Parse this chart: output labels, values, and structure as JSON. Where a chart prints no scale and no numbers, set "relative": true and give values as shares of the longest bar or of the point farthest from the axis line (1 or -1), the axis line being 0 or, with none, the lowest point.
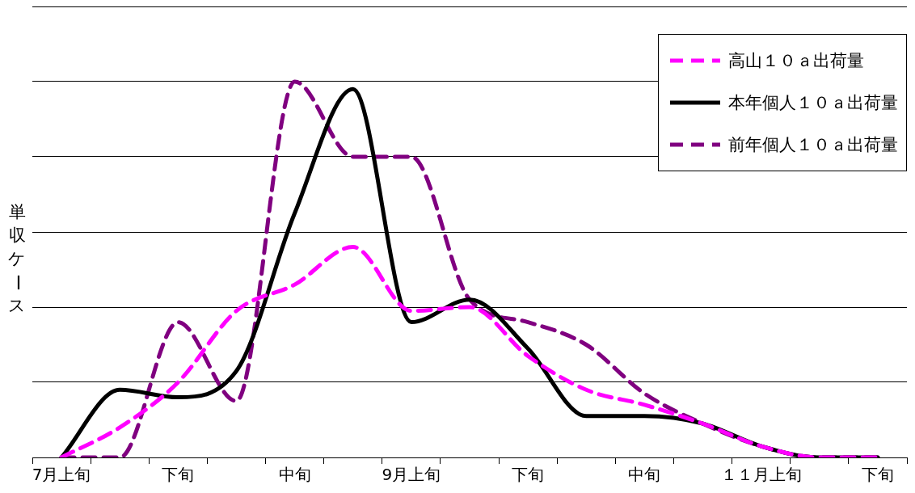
{
  "chart_data": {
    "type": "line",
    "ylabel": "単収ケース",
    "relative": true,
    "grid": "y",
    "legend": "top right",
    "marker": "none",
    "categories": [
      "7月上旬",
      null,
      "下旬",
      null,
      "中旬",
      null,
      "9月上旬",
      null,
      "下旬",
      null,
      "中旬",
      null,
      "１１月上旬",
      null,
      "下旬"
    ],
    "series": [
      {
        "name": "高山１０ａ出荷量",
        "color": "#ff00ff",
        "line_style": "dashed",
        "values": [
          0,
          0.08,
          0.2,
          0.39,
          0.46,
          0.56,
          0.39,
          0.4,
          0.27,
          0.18,
          0.14,
          0.09,
          0.03,
          0,
          0
        ]
      },
      {
        "name": "本年個人１０ａ出荷量",
        "color": "#000000",
        "line_style": "solid",
        "values": [
          0,
          0.18,
          0.16,
          0.23,
          0.65,
          0.98,
          0.36,
          0.42,
          0.29,
          0.11,
          0.11,
          0.09,
          0.03,
          0,
          0
        ]
      },
      {
        "name": "前年個人１０ａ出荷量",
        "color": "#800080",
        "line_style": "dashed",
        "values": [
          0,
          0,
          0.36,
          0.15,
          1,
          0.8,
          0.8,
          0.42,
          0.36,
          0.3,
          0.17,
          0.09,
          0.03,
          0,
          0
        ]
      }
    ]
  }
}
